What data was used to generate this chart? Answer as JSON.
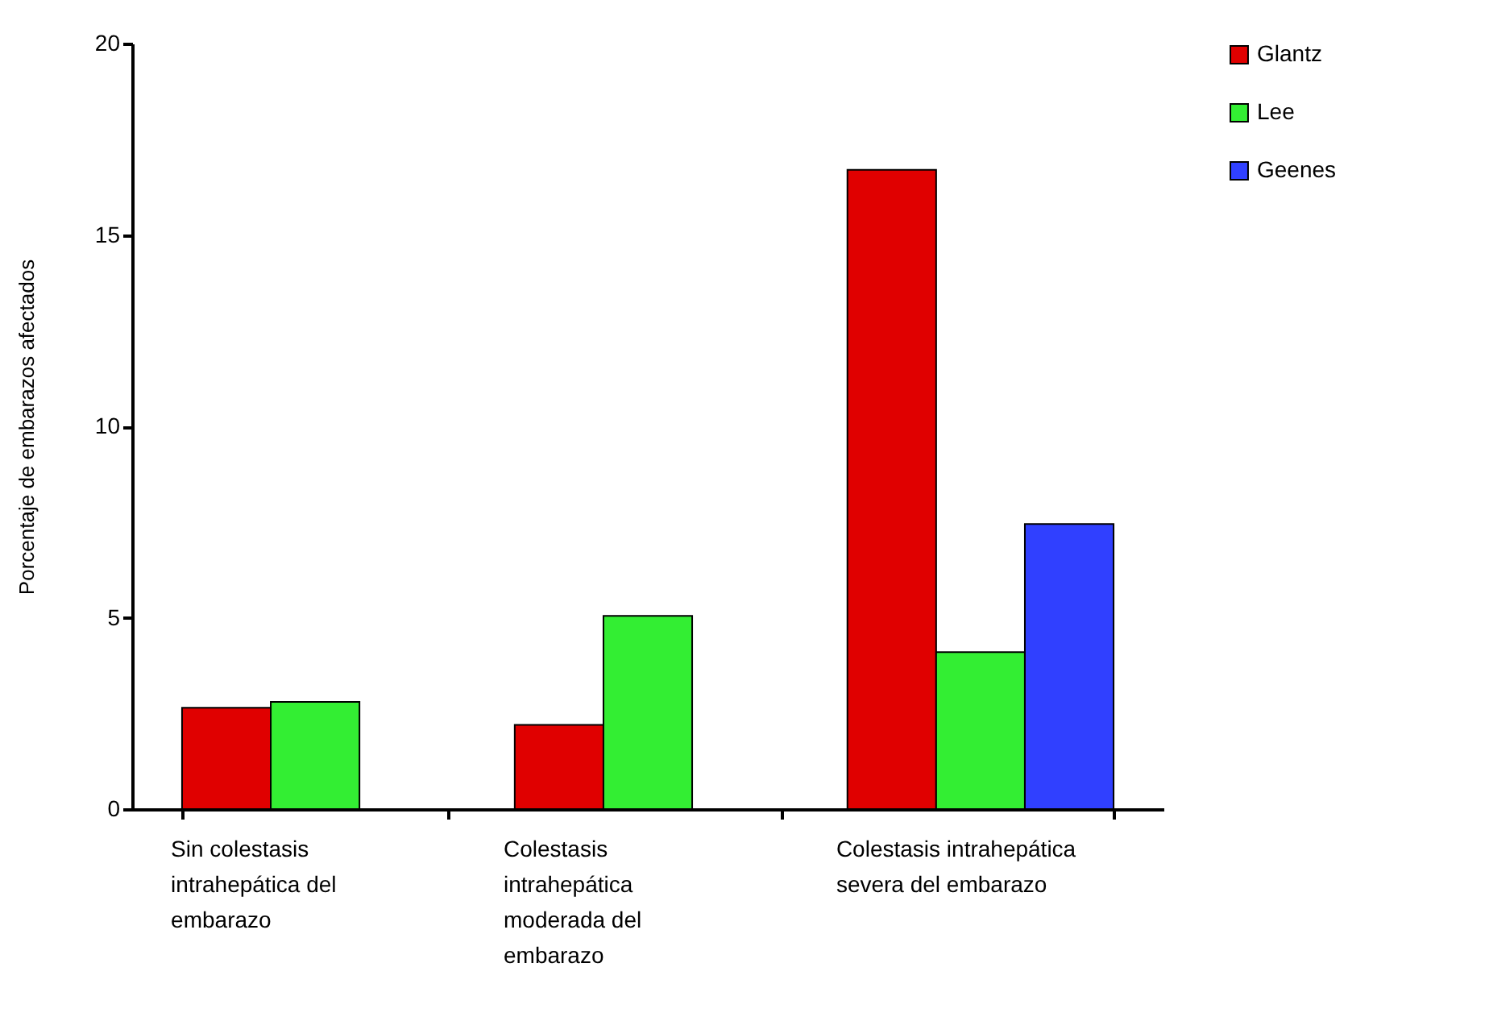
{
  "chart_data": {
    "type": "bar",
    "ylabel": "Porcentaje de embarazos afectados",
    "categories": [
      "Sin colestasis intrahepática del embarazo",
      "Colestasis intrahepática moderada del embarazo",
      "Colestasis intrahepática severa del embarazo"
    ],
    "series": [
      {
        "name": "Glantz",
        "color": "#e00000",
        "values": [
          2.65,
          2.2,
          16.7
        ]
      },
      {
        "name": "Lee",
        "color": "#33ee33",
        "values": [
          2.8,
          5.05,
          4.1
        ]
      },
      {
        "name": "Geenes",
        "color": "#3040ff",
        "values": [
          null,
          null,
          7.45
        ]
      }
    ],
    "ylim": [
      0,
      20
    ],
    "yticks": [
      0,
      5,
      10,
      15,
      20
    ],
    "grid": false,
    "legend": "right"
  }
}
